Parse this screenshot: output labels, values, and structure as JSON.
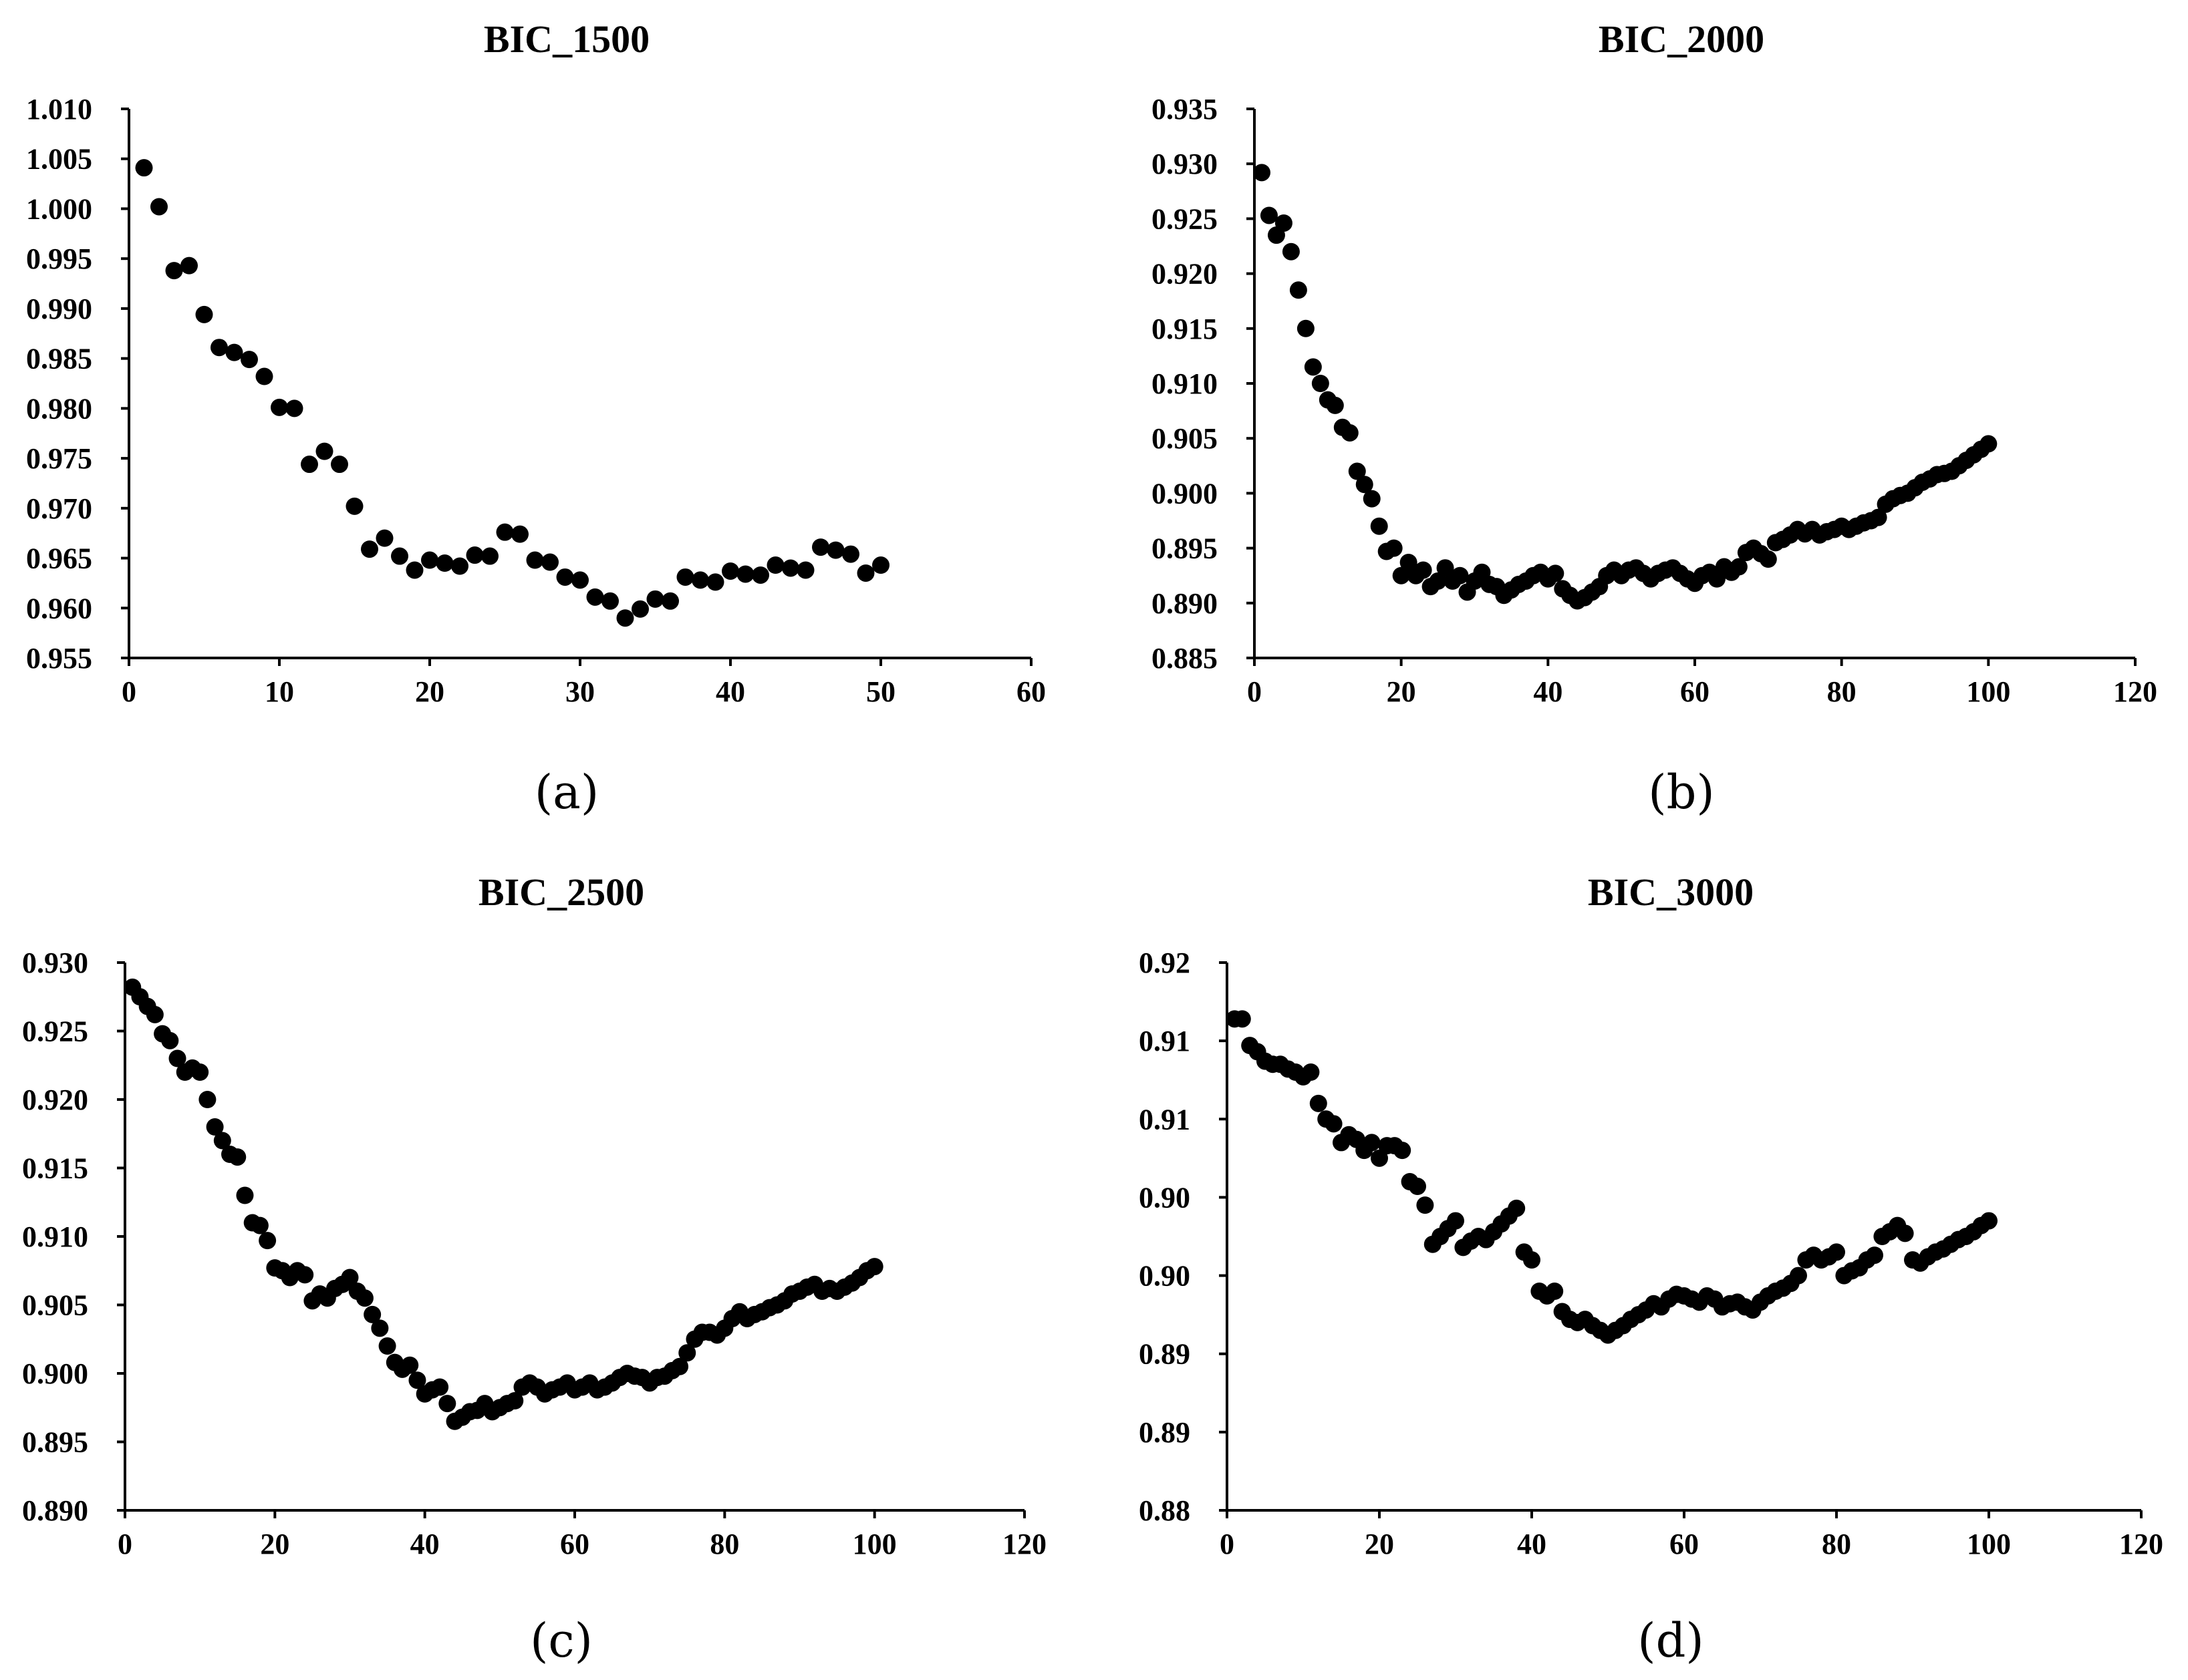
{
  "chart_data": [
    {
      "type": "scatter",
      "title": "BIC_1500",
      "caption": "(a)",
      "xlim": [
        0,
        60
      ],
      "ylim": [
        0.955,
        1.01
      ],
      "xticks": [
        0,
        10,
        20,
        30,
        40,
        50,
        60
      ],
      "yticks": [
        0.955,
        0.96,
        0.965,
        0.97,
        0.975,
        0.98,
        0.985,
        0.99,
        0.995,
        1.0,
        1.005,
        1.01
      ],
      "yticklabels": [
        "0.955",
        "0.960",
        "0.965",
        "0.970",
        "0.975",
        "0.980",
        "0.985",
        "0.990",
        "0.995",
        "1.000",
        "1.005",
        "1.010"
      ],
      "xticklabels": [
        "0",
        "10",
        "20",
        "30",
        "40",
        "50",
        "60"
      ],
      "x_start": 1,
      "x_step": 1,
      "y": [
        1.0041,
        1.0002,
        0.9938,
        0.9943,
        0.9894,
        0.9861,
        0.9856,
        0.9849,
        0.9832,
        0.9801,
        0.98,
        0.9744,
        0.9757,
        0.9744,
        0.9702,
        0.9659,
        0.967,
        0.9652,
        0.9638,
        0.9648,
        0.9645,
        0.9642,
        0.9653,
        0.9652,
        0.9676,
        0.9674,
        0.9648,
        0.9646,
        0.9631,
        0.9628,
        0.9611,
        0.9607,
        0.959,
        0.9599,
        0.9609,
        0.9607,
        0.9631,
        0.9628,
        0.9626,
        0.9637,
        0.9634,
        0.9633,
        0.9643,
        0.964,
        0.9638,
        0.9661,
        0.9658,
        0.9654,
        0.9635,
        0.9643
      ]
    },
    {
      "type": "scatter",
      "title": "BIC_2000",
      "caption": "(b)",
      "xlim": [
        0,
        120
      ],
      "ylim": [
        0.885,
        0.935
      ],
      "xticks": [
        0,
        20,
        40,
        60,
        80,
        100,
        120
      ],
      "yticks": [
        0.885,
        0.89,
        0.895,
        0.9,
        0.905,
        0.91,
        0.915,
        0.92,
        0.925,
        0.93,
        0.935
      ],
      "yticklabels": [
        "0.885",
        "0.890",
        "0.895",
        "0.900",
        "0.905",
        "0.910",
        "0.915",
        "0.920",
        "0.925",
        "0.930",
        "0.935"
      ],
      "xticklabels": [
        "0",
        "20",
        "40",
        "60",
        "80",
        "100",
        "120"
      ],
      "x_start": 1,
      "x_step": 1,
      "y": [
        0.9292,
        0.9253,
        0.9235,
        0.9246,
        0.922,
        0.9185,
        0.915,
        0.9115,
        0.91,
        0.9085,
        0.908,
        0.906,
        0.9055,
        0.902,
        0.9008,
        0.8995,
        0.897,
        0.8947,
        0.895,
        0.8925,
        0.8937,
        0.8925,
        0.893,
        0.8915,
        0.892,
        0.8932,
        0.892,
        0.8925,
        0.891,
        0.892,
        0.8928,
        0.8917,
        0.8915,
        0.8907,
        0.8912,
        0.8917,
        0.892,
        0.8925,
        0.8928,
        0.8922,
        0.8927,
        0.8913,
        0.8907,
        0.8902,
        0.8905,
        0.891,
        0.8915,
        0.8925,
        0.893,
        0.8925,
        0.893,
        0.8932,
        0.8927,
        0.8922,
        0.8927,
        0.893,
        0.8932,
        0.8927,
        0.8922,
        0.8918,
        0.8925,
        0.8928,
        0.8922,
        0.8933,
        0.8928,
        0.8933,
        0.8946,
        0.895,
        0.8945,
        0.894,
        0.8955,
        0.8958,
        0.8962,
        0.8967,
        0.8963,
        0.8967,
        0.8962,
        0.8965,
        0.8967,
        0.897,
        0.8967,
        0.897,
        0.8973,
        0.8975,
        0.8978,
        0.899,
        0.8995,
        0.8998,
        0.9,
        0.9005,
        0.901,
        0.9013,
        0.9017,
        0.9018,
        0.902,
        0.9025,
        0.903,
        0.9035,
        0.904,
        0.9045
      ]
    },
    {
      "type": "scatter",
      "title": "BIC_2500",
      "caption": "(c)",
      "xlim": [
        0,
        120
      ],
      "ylim": [
        0.89,
        0.93
      ],
      "xticks": [
        0,
        20,
        40,
        60,
        80,
        100,
        120
      ],
      "yticks": [
        0.89,
        0.895,
        0.9,
        0.905,
        0.91,
        0.915,
        0.92,
        0.925,
        0.93
      ],
      "yticklabels": [
        "0.890",
        "0.895",
        "0.900",
        "0.905",
        "0.910",
        "0.915",
        "0.920",
        "0.925",
        "0.930"
      ],
      "xticklabels": [
        "0",
        "20",
        "40",
        "60",
        "80",
        "100",
        "120"
      ],
      "x_start": 1,
      "x_step": 1,
      "y": [
        0.9282,
        0.9275,
        0.9268,
        0.9262,
        0.9248,
        0.9243,
        0.923,
        0.922,
        0.9223,
        0.922,
        0.92,
        0.918,
        0.917,
        0.916,
        0.9158,
        0.913,
        0.911,
        0.9108,
        0.9097,
        0.9077,
        0.9075,
        0.907,
        0.9075,
        0.9072,
        0.9053,
        0.9058,
        0.9055,
        0.9062,
        0.9065,
        0.907,
        0.906,
        0.9055,
        0.9043,
        0.9033,
        0.902,
        0.9008,
        0.9003,
        0.9006,
        0.8995,
        0.8985,
        0.8988,
        0.899,
        0.8978,
        0.8965,
        0.8968,
        0.8972,
        0.8973,
        0.8978,
        0.8972,
        0.8975,
        0.8978,
        0.898,
        0.899,
        0.8993,
        0.899,
        0.8985,
        0.8988,
        0.899,
        0.8993,
        0.8988,
        0.899,
        0.8993,
        0.8988,
        0.899,
        0.8993,
        0.8997,
        0.9,
        0.8998,
        0.8997,
        0.8993,
        0.8997,
        0.8998,
        0.9002,
        0.9005,
        0.9015,
        0.9025,
        0.903,
        0.903,
        0.9028,
        0.9033,
        0.904,
        0.9045,
        0.904,
        0.9043,
        0.9045,
        0.9048,
        0.905,
        0.9053,
        0.9058,
        0.906,
        0.9063,
        0.9065,
        0.906,
        0.9062,
        0.906,
        0.9063,
        0.9066,
        0.907,
        0.9075,
        0.9078
      ]
    },
    {
      "type": "scatter",
      "title": "BIC_3000",
      "caption": "(d)",
      "xlim": [
        0,
        120
      ],
      "ylim": [
        0.8825,
        0.9175
      ],
      "xticks": [
        0,
        20,
        40,
        60,
        80,
        100,
        120
      ],
      "yticks": [
        0.8825,
        0.8875,
        0.8925,
        0.8975,
        0.9025,
        0.9075,
        0.9125,
        0.9175
      ],
      "yticklabels": [
        "0.88",
        "0.89",
        "0.89",
        "0.90",
        "0.90",
        "0.91",
        "0.91",
        "0.92"
      ],
      "xticklabels": [
        "0",
        "20",
        "40",
        "60",
        "80",
        "100",
        "120"
      ],
      "x_start": 1,
      "x_step": 1,
      "y": [
        0.9139,
        0.9139,
        0.9122,
        0.9118,
        0.9112,
        0.911,
        0.911,
        0.9107,
        0.9105,
        0.9102,
        0.9105,
        0.9085,
        0.9075,
        0.9072,
        0.906,
        0.9065,
        0.9062,
        0.9055,
        0.906,
        0.905,
        0.9058,
        0.9058,
        0.9055,
        0.9035,
        0.9032,
        0.902,
        0.8995,
        0.9,
        0.9005,
        0.901,
        0.8993,
        0.8997,
        0.9,
        0.8998,
        0.9003,
        0.9008,
        0.9013,
        0.9018,
        0.899,
        0.8985,
        0.8965,
        0.8962,
        0.8965,
        0.8952,
        0.8947,
        0.8945,
        0.8947,
        0.8943,
        0.894,
        0.8937,
        0.894,
        0.8943,
        0.8947,
        0.895,
        0.8953,
        0.8957,
        0.8955,
        0.896,
        0.8963,
        0.8962,
        0.896,
        0.8958,
        0.8962,
        0.896,
        0.8955,
        0.8957,
        0.8958,
        0.8955,
        0.8953,
        0.8958,
        0.8962,
        0.8965,
        0.8967,
        0.897,
        0.8975,
        0.8985,
        0.8988,
        0.8985,
        0.8987,
        0.899,
        0.8975,
        0.8978,
        0.898,
        0.8985,
        0.8988,
        0.9,
        0.9003,
        0.9007,
        0.9002,
        0.8985,
        0.8983,
        0.8987,
        0.899,
        0.8992,
        0.8995,
        0.8998,
        0.9,
        0.9003,
        0.9007,
        0.901
      ]
    }
  ]
}
